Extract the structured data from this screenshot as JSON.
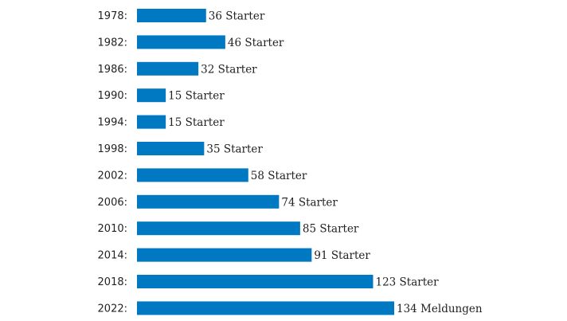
{
  "chart_data": {
    "type": "bar",
    "orientation": "horizontal",
    "categories": [
      "1978:",
      "1982:",
      "1986:",
      "1990:",
      "1994:",
      "1998:",
      "2002:",
      "2006:",
      "2010:",
      "2014:",
      "2018:",
      "2022:"
    ],
    "values": [
      36,
      46,
      32,
      15,
      15,
      35,
      58,
      74,
      85,
      91,
      123,
      134
    ],
    "data_labels": [
      "36 Starter",
      "46 Starter",
      "32 Starter",
      "15 Starter",
      "15 Starter",
      "35 Starter",
      "58 Starter",
      "74 Starter",
      "85 Starter",
      "91 Starter",
      "123 Starter",
      "134 Meldungen"
    ],
    "bar_color": "#0079c2",
    "grid": false,
    "legend": "none"
  }
}
